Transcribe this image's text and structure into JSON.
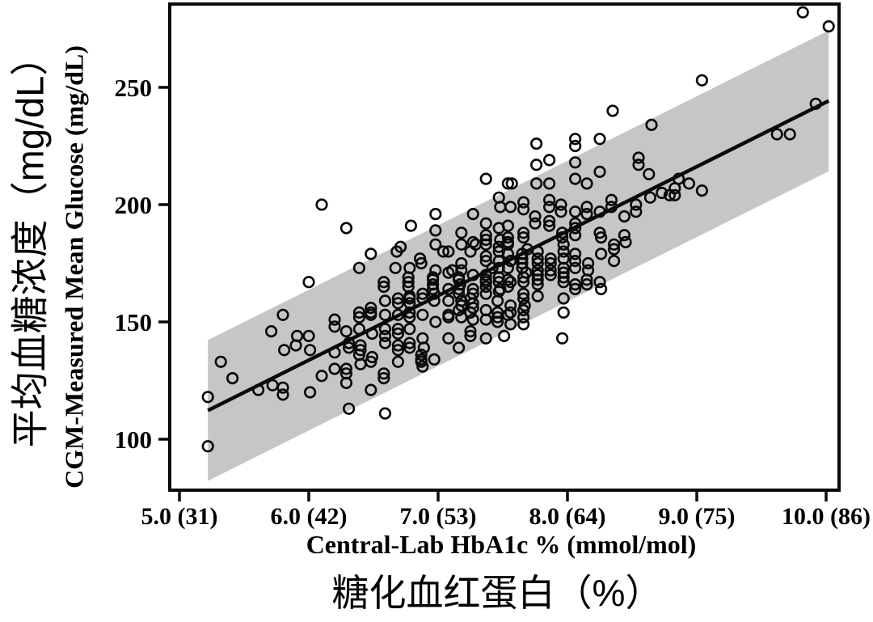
{
  "figure": {
    "background_color": "#ffffff",
    "band_color": "#c6c6c6",
    "ink_color": "#0a0a0a"
  },
  "x_axis": {
    "title_en": "Central-Lab HbA1c % (mmol/mol)",
    "title_zh": "糖化血红蛋白（%）",
    "ticks": [
      {
        "value": 5.0,
        "label": "5.0 (31)"
      },
      {
        "value": 6.0,
        "label": "6.0 (42)"
      },
      {
        "value": 7.0,
        "label": "7.0 (53)"
      },
      {
        "value": 8.0,
        "label": "8.0 (64)"
      },
      {
        "value": 9.0,
        "label": "9.0 (75)"
      },
      {
        "value": 10.0,
        "label": "10.0 (86)"
      }
    ]
  },
  "y_axis": {
    "title_en": "CGM-Measured Mean Glucose (mg/dL)",
    "title_zh": "平均血糖浓度（mg/dL）",
    "ticks": [
      {
        "value": 250,
        "label": "250"
      },
      {
        "value": 200,
        "label": "200"
      },
      {
        "value": 150,
        "label": "150"
      },
      {
        "value": 100,
        "label": "100"
      }
    ]
  },
  "chart_data": {
    "type": "scatter",
    "xlabel": "Central-Lab HbA1c % (mmol/mol)",
    "ylabel": "CGM-Measured Mean Glucose (mg/dL)",
    "xlim": [
      4.93,
      10.1
    ],
    "ylim": [
      78,
      286
    ],
    "grid": false,
    "legend": "none",
    "regression_line": {
      "slope": 27.5,
      "intercept": -31.3,
      "x_start": 5.22,
      "x_end": 10.02
    },
    "confidence_band": {
      "half_width": 30,
      "x_start": 5.22,
      "x_end": 10.02
    },
    "marker": {
      "shape": "open-circle",
      "radius_px": 6.3,
      "stroke_px": 2.6
    },
    "points": [
      [
        5.22,
        97
      ],
      [
        5.22,
        118
      ],
      [
        5.32,
        133
      ],
      [
        5.41,
        126
      ],
      [
        5.61,
        121
      ],
      [
        5.71,
        146
      ],
      [
        5.72,
        123
      ],
      [
        5.8,
        153
      ],
      [
        5.8,
        122
      ],
      [
        5.8,
        119
      ],
      [
        5.81,
        138
      ],
      [
        5.9,
        140
      ],
      [
        5.91,
        144
      ],
      [
        6.0,
        167
      ],
      [
        6.0,
        144
      ],
      [
        6.01,
        138
      ],
      [
        6.01,
        120
      ],
      [
        6.1,
        200
      ],
      [
        6.1,
        127
      ],
      [
        6.2,
        151
      ],
      [
        6.2,
        148
      ],
      [
        6.2,
        137
      ],
      [
        6.2,
        130
      ],
      [
        6.29,
        190
      ],
      [
        6.29,
        146
      ],
      [
        6.29,
        130
      ],
      [
        6.29,
        128
      ],
      [
        6.29,
        124
      ],
      [
        6.31,
        141
      ],
      [
        6.31,
        139
      ],
      [
        6.31,
        113
      ],
      [
        6.39,
        173
      ],
      [
        6.39,
        154
      ],
      [
        6.39,
        152
      ],
      [
        6.39,
        147
      ],
      [
        6.39,
        136
      ],
      [
        6.4,
        140
      ],
      [
        6.4,
        138
      ],
      [
        6.4,
        132
      ],
      [
        6.48,
        179
      ],
      [
        6.48,
        156
      ],
      [
        6.48,
        154
      ],
      [
        6.48,
        153
      ],
      [
        6.48,
        133
      ],
      [
        6.48,
        121
      ],
      [
        6.49,
        145
      ],
      [
        6.49,
        135
      ],
      [
        6.58,
        167
      ],
      [
        6.58,
        165
      ],
      [
        6.58,
        128
      ],
      [
        6.58,
        126
      ],
      [
        6.59,
        159
      ],
      [
        6.59,
        153
      ],
      [
        6.59,
        147
      ],
      [
        6.59,
        144
      ],
      [
        6.59,
        141
      ],
      [
        6.59,
        111
      ],
      [
        6.67,
        173
      ],
      [
        6.68,
        180
      ],
      [
        6.69,
        160
      ],
      [
        6.69,
        158
      ],
      [
        6.69,
        153
      ],
      [
        6.69,
        147
      ],
      [
        6.69,
        145
      ],
      [
        6.69,
        140
      ],
      [
        6.69,
        138
      ],
      [
        6.69,
        133
      ],
      [
        6.71,
        182
      ],
      [
        6.77,
        169
      ],
      [
        6.77,
        167
      ],
      [
        6.77,
        165
      ],
      [
        6.78,
        173
      ],
      [
        6.78,
        161
      ],
      [
        6.78,
        160
      ],
      [
        6.78,
        158
      ],
      [
        6.78,
        154
      ],
      [
        6.78,
        152
      ],
      [
        6.78,
        147
      ],
      [
        6.78,
        141
      ],
      [
        6.78,
        139
      ],
      [
        6.79,
        191
      ],
      [
        6.86,
        177
      ],
      [
        6.87,
        175
      ],
      [
        6.87,
        136
      ],
      [
        6.87,
        134
      ],
      [
        6.87,
        133
      ],
      [
        6.88,
        162
      ],
      [
        6.88,
        160
      ],
      [
        6.88,
        153
      ],
      [
        6.88,
        143
      ],
      [
        6.88,
        131
      ],
      [
        6.89,
        139
      ],
      [
        6.96,
        169
      ],
      [
        6.96,
        168
      ],
      [
        6.96,
        166
      ],
      [
        6.96,
        164
      ],
      [
        6.97,
        162
      ],
      [
        6.97,
        159
      ],
      [
        6.97,
        134
      ],
      [
        6.98,
        196
      ],
      [
        6.98,
        189
      ],
      [
        6.98,
        183
      ],
      [
        6.98,
        172
      ],
      [
        6.98,
        150
      ],
      [
        7.04,
        180
      ],
      [
        7.08,
        180
      ],
      [
        7.08,
        171
      ],
      [
        7.08,
        164
      ],
      [
        7.08,
        159
      ],
      [
        7.08,
        153
      ],
      [
        7.08,
        152
      ],
      [
        7.08,
        143
      ],
      [
        7.11,
        172
      ],
      [
        7.16,
        169
      ],
      [
        7.16,
        168
      ],
      [
        7.16,
        164
      ],
      [
        7.16,
        162
      ],
      [
        7.16,
        155
      ],
      [
        7.16,
        139
      ],
      [
        7.17,
        166
      ],
      [
        7.18,
        188
      ],
      [
        7.18,
        183
      ],
      [
        7.18,
        175
      ],
      [
        7.18,
        172
      ],
      [
        7.18,
        159
      ],
      [
        7.18,
        157
      ],
      [
        7.18,
        152
      ],
      [
        7.25,
        180
      ],
      [
        7.25,
        160
      ],
      [
        7.25,
        154
      ],
      [
        7.25,
        146
      ],
      [
        7.25,
        144
      ],
      [
        7.27,
        196
      ],
      [
        7.27,
        184
      ],
      [
        7.27,
        170
      ],
      [
        7.27,
        164
      ],
      [
        7.27,
        162
      ],
      [
        7.27,
        158
      ],
      [
        7.27,
        156
      ],
      [
        7.27,
        151
      ],
      [
        7.29,
        183
      ],
      [
        7.37,
        211
      ],
      [
        7.37,
        192
      ],
      [
        7.37,
        187
      ],
      [
        7.37,
        185
      ],
      [
        7.37,
        183
      ],
      [
        7.37,
        178
      ],
      [
        7.37,
        176
      ],
      [
        7.37,
        170
      ],
      [
        7.37,
        168
      ],
      [
        7.37,
        167
      ],
      [
        7.37,
        165
      ],
      [
        7.37,
        162
      ],
      [
        7.37,
        155
      ],
      [
        7.37,
        151
      ],
      [
        7.37,
        143
      ],
      [
        7.42,
        173
      ],
      [
        7.46,
        159
      ],
      [
        7.46,
        154
      ],
      [
        7.46,
        152
      ],
      [
        7.46,
        150
      ],
      [
        7.47,
        203
      ],
      [
        7.47,
        190
      ],
      [
        7.47,
        182
      ],
      [
        7.47,
        180
      ],
      [
        7.47,
        176
      ],
      [
        7.47,
        173
      ],
      [
        7.47,
        169
      ],
      [
        7.47,
        167
      ],
      [
        7.47,
        163
      ],
      [
        7.48,
        199
      ],
      [
        7.48,
        185
      ],
      [
        7.48,
        164
      ],
      [
        7.51,
        144
      ],
      [
        7.54,
        209
      ],
      [
        7.54,
        191
      ],
      [
        7.54,
        186
      ],
      [
        7.54,
        184
      ],
      [
        7.54,
        183
      ],
      [
        7.54,
        179
      ],
      [
        7.54,
        173
      ],
      [
        7.54,
        168
      ],
      [
        7.54,
        165
      ],
      [
        7.54,
        153
      ],
      [
        7.56,
        199
      ],
      [
        7.56,
        176
      ],
      [
        7.56,
        167
      ],
      [
        7.56,
        157
      ],
      [
        7.56,
        154
      ],
      [
        7.56,
        149
      ],
      [
        7.57,
        209
      ],
      [
        7.65,
        179
      ],
      [
        7.65,
        177
      ],
      [
        7.65,
        175
      ],
      [
        7.65,
        173
      ],
      [
        7.66,
        201
      ],
      [
        7.66,
        198
      ],
      [
        7.66,
        188
      ],
      [
        7.66,
        186
      ],
      [
        7.66,
        169
      ],
      [
        7.66,
        167
      ],
      [
        7.66,
        162
      ],
      [
        7.66,
        160
      ],
      [
        7.66,
        155
      ],
      [
        7.66,
        152
      ],
      [
        7.66,
        149
      ],
      [
        7.67,
        157
      ],
      [
        7.68,
        171
      ],
      [
        7.69,
        181
      ],
      [
        7.75,
        195
      ],
      [
        7.75,
        192
      ],
      [
        7.76,
        226
      ],
      [
        7.76,
        217
      ],
      [
        7.76,
        209
      ],
      [
        7.77,
        180
      ],
      [
        7.77,
        177
      ],
      [
        7.77,
        175
      ],
      [
        7.77,
        172
      ],
      [
        7.77,
        170
      ],
      [
        7.77,
        168
      ],
      [
        7.77,
        166
      ],
      [
        7.77,
        161
      ],
      [
        7.86,
        219
      ],
      [
        7.86,
        209
      ],
      [
        7.86,
        202
      ],
      [
        7.86,
        199
      ],
      [
        7.86,
        193
      ],
      [
        7.86,
        191
      ],
      [
        7.87,
        177
      ],
      [
        7.87,
        175
      ],
      [
        7.87,
        172
      ],
      [
        7.87,
        170
      ],
      [
        7.95,
        200
      ],
      [
        7.95,
        197
      ],
      [
        7.96,
        188
      ],
      [
        7.96,
        186
      ],
      [
        7.96,
        143
      ],
      [
        7.97,
        183
      ],
      [
        7.97,
        180
      ],
      [
        7.97,
        177
      ],
      [
        7.97,
        173
      ],
      [
        7.97,
        171
      ],
      [
        7.97,
        169
      ],
      [
        7.97,
        167
      ],
      [
        7.97,
        160
      ],
      [
        7.97,
        154
      ],
      [
        8.06,
        228
      ],
      [
        8.06,
        225
      ],
      [
        8.06,
        218
      ],
      [
        8.06,
        211
      ],
      [
        8.06,
        197
      ],
      [
        8.06,
        192
      ],
      [
        8.06,
        190
      ],
      [
        8.06,
        187
      ],
      [
        8.06,
        179
      ],
      [
        8.06,
        176
      ],
      [
        8.06,
        173
      ],
      [
        8.06,
        166
      ],
      [
        8.06,
        164
      ],
      [
        8.15,
        209
      ],
      [
        8.15,
        199
      ],
      [
        8.15,
        196
      ],
      [
        8.15,
        168
      ],
      [
        8.15,
        166
      ],
      [
        8.16,
        175
      ],
      [
        8.16,
        172
      ],
      [
        8.25,
        228
      ],
      [
        8.25,
        214
      ],
      [
        8.25,
        197
      ],
      [
        8.25,
        188
      ],
      [
        8.25,
        167
      ],
      [
        8.26,
        186
      ],
      [
        8.26,
        179
      ],
      [
        8.26,
        164
      ],
      [
        8.34,
        202
      ],
      [
        8.34,
        199
      ],
      [
        8.35,
        240
      ],
      [
        8.36,
        183
      ],
      [
        8.36,
        181
      ],
      [
        8.36,
        176
      ],
      [
        8.44,
        195
      ],
      [
        8.44,
        187
      ],
      [
        8.45,
        184
      ],
      [
        8.53,
        200
      ],
      [
        8.53,
        197
      ],
      [
        8.55,
        220
      ],
      [
        8.55,
        217
      ],
      [
        8.63,
        213
      ],
      [
        8.64,
        203
      ],
      [
        8.65,
        234
      ],
      [
        8.73,
        205
      ],
      [
        8.79,
        204
      ],
      [
        8.83,
        207
      ],
      [
        8.83,
        204
      ],
      [
        8.86,
        211
      ],
      [
        8.94,
        209
      ],
      [
        9.04,
        253
      ],
      [
        9.04,
        206
      ],
      [
        9.62,
        230
      ],
      [
        9.72,
        230
      ],
      [
        9.82,
        282
      ],
      [
        9.92,
        243
      ],
      [
        10.02,
        276
      ]
    ]
  }
}
